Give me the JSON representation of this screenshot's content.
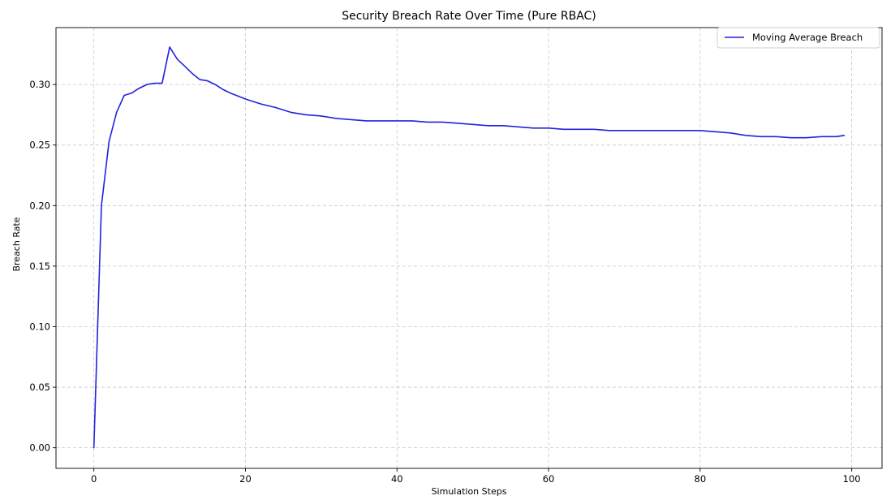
{
  "chart_data": {
    "type": "line",
    "title": "Security Breach Rate Over Time (Pure RBAC)",
    "xlabel": "Simulation Steps",
    "ylabel": "Breach Rate",
    "xlim": [
      -5,
      104
    ],
    "ylim": [
      -0.017,
      0.347
    ],
    "xticks": [
      0,
      20,
      40,
      60,
      80,
      100
    ],
    "xtick_labels": [
      "0",
      "20",
      "40",
      "60",
      "80",
      "100"
    ],
    "yticks": [
      0.0,
      0.05,
      0.1,
      0.15,
      0.2,
      0.25,
      0.3
    ],
    "ytick_labels": [
      "0.00",
      "0.05",
      "0.10",
      "0.15",
      "0.20",
      "0.25",
      "0.30"
    ],
    "grid": true,
    "legend": {
      "position": "top-right"
    },
    "series": [
      {
        "name": "Moving Average Breach",
        "color": "#2222dd",
        "x": [
          0,
          1,
          2,
          3,
          4,
          5,
          6,
          7,
          8,
          9,
          10,
          11,
          12,
          13,
          14,
          15,
          16,
          17,
          18,
          20,
          22,
          24,
          26,
          28,
          30,
          32,
          34,
          36,
          38,
          40,
          42,
          44,
          46,
          48,
          50,
          52,
          54,
          56,
          58,
          60,
          62,
          64,
          66,
          68,
          70,
          72,
          74,
          76,
          78,
          80,
          82,
          84,
          86,
          88,
          90,
          92,
          94,
          96,
          98,
          99
        ],
        "y": [
          0.0,
          0.2,
          0.253,
          0.277,
          0.291,
          0.293,
          0.297,
          0.3,
          0.301,
          0.301,
          0.331,
          0.321,
          0.315,
          0.309,
          0.304,
          0.303,
          0.3,
          0.296,
          0.293,
          0.288,
          0.284,
          0.281,
          0.277,
          0.275,
          0.274,
          0.272,
          0.271,
          0.27,
          0.27,
          0.27,
          0.27,
          0.269,
          0.269,
          0.268,
          0.267,
          0.266,
          0.266,
          0.265,
          0.264,
          0.264,
          0.263,
          0.263,
          0.263,
          0.262,
          0.262,
          0.262,
          0.262,
          0.262,
          0.262,
          0.262,
          0.261,
          0.26,
          0.258,
          0.257,
          0.257,
          0.256,
          0.256,
          0.257,
          0.257,
          0.258
        ]
      }
    ]
  }
}
